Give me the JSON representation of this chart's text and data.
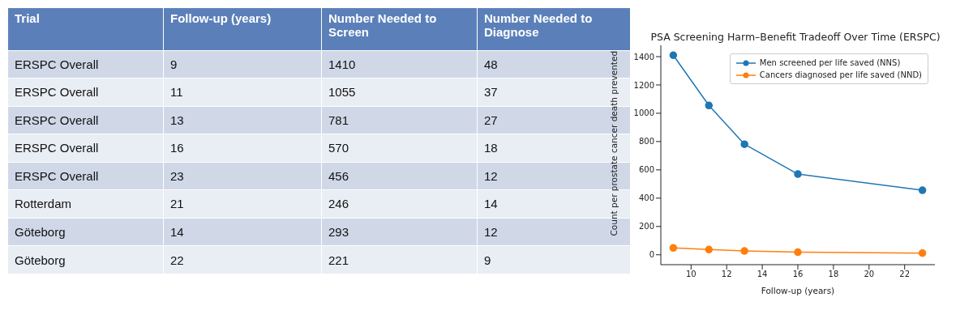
{
  "chart_data": [
    {
      "type": "other",
      "categories": [
        "Trial",
        "Follow-up (years)",
        "Number Needed to Screen",
        "Number Needed to Diagnose"
      ],
      "cell_labels": [
        [
          "ERSPC Overall",
          "9",
          "1410",
          "48"
        ],
        [
          "ERSPC Overall",
          "11",
          "1055",
          "37"
        ],
        [
          "ERSPC Overall",
          "13",
          "781",
          "27"
        ],
        [
          "ERSPC Overall",
          "16",
          "570",
          "18"
        ],
        [
          "ERSPC Overall",
          "23",
          "456",
          "12"
        ],
        [
          "Rotterdam",
          "21",
          "246",
          "14"
        ],
        [
          "Göteborg",
          "14",
          "293",
          "12"
        ],
        [
          "Göteborg",
          "22",
          "221",
          "9"
        ]
      ]
    },
    {
      "type": "line",
      "title": "PSA Screening Harm–Benefit Tradeoff Over Time (ERSPC)",
      "xlabel": "Follow-up (years)",
      "ylabel": "Count per prostate cancer death prevented",
      "x": [
        9,
        11,
        13,
        16,
        23
      ],
      "series": [
        {
          "name": "Men screened per life saved (NNS)",
          "color": "#1f77b4",
          "values": [
            1410,
            1055,
            781,
            570,
            456
          ]
        },
        {
          "name": "Cancers diagnosed per life saved (NND)",
          "color": "#ff7f0e",
          "values": [
            48,
            37,
            27,
            18,
            12
          ]
        }
      ],
      "xlim": [
        8.3,
        23.7
      ],
      "xticks": [
        10,
        12,
        14,
        16,
        18,
        20,
        22
      ],
      "ylim": [
        -70,
        1480
      ],
      "yticks": [
        0,
        200,
        400,
        600,
        800,
        1000,
        1200,
        1400
      ],
      "legend": "top right",
      "marker": "circle",
      "line_style": "solid"
    }
  ]
}
